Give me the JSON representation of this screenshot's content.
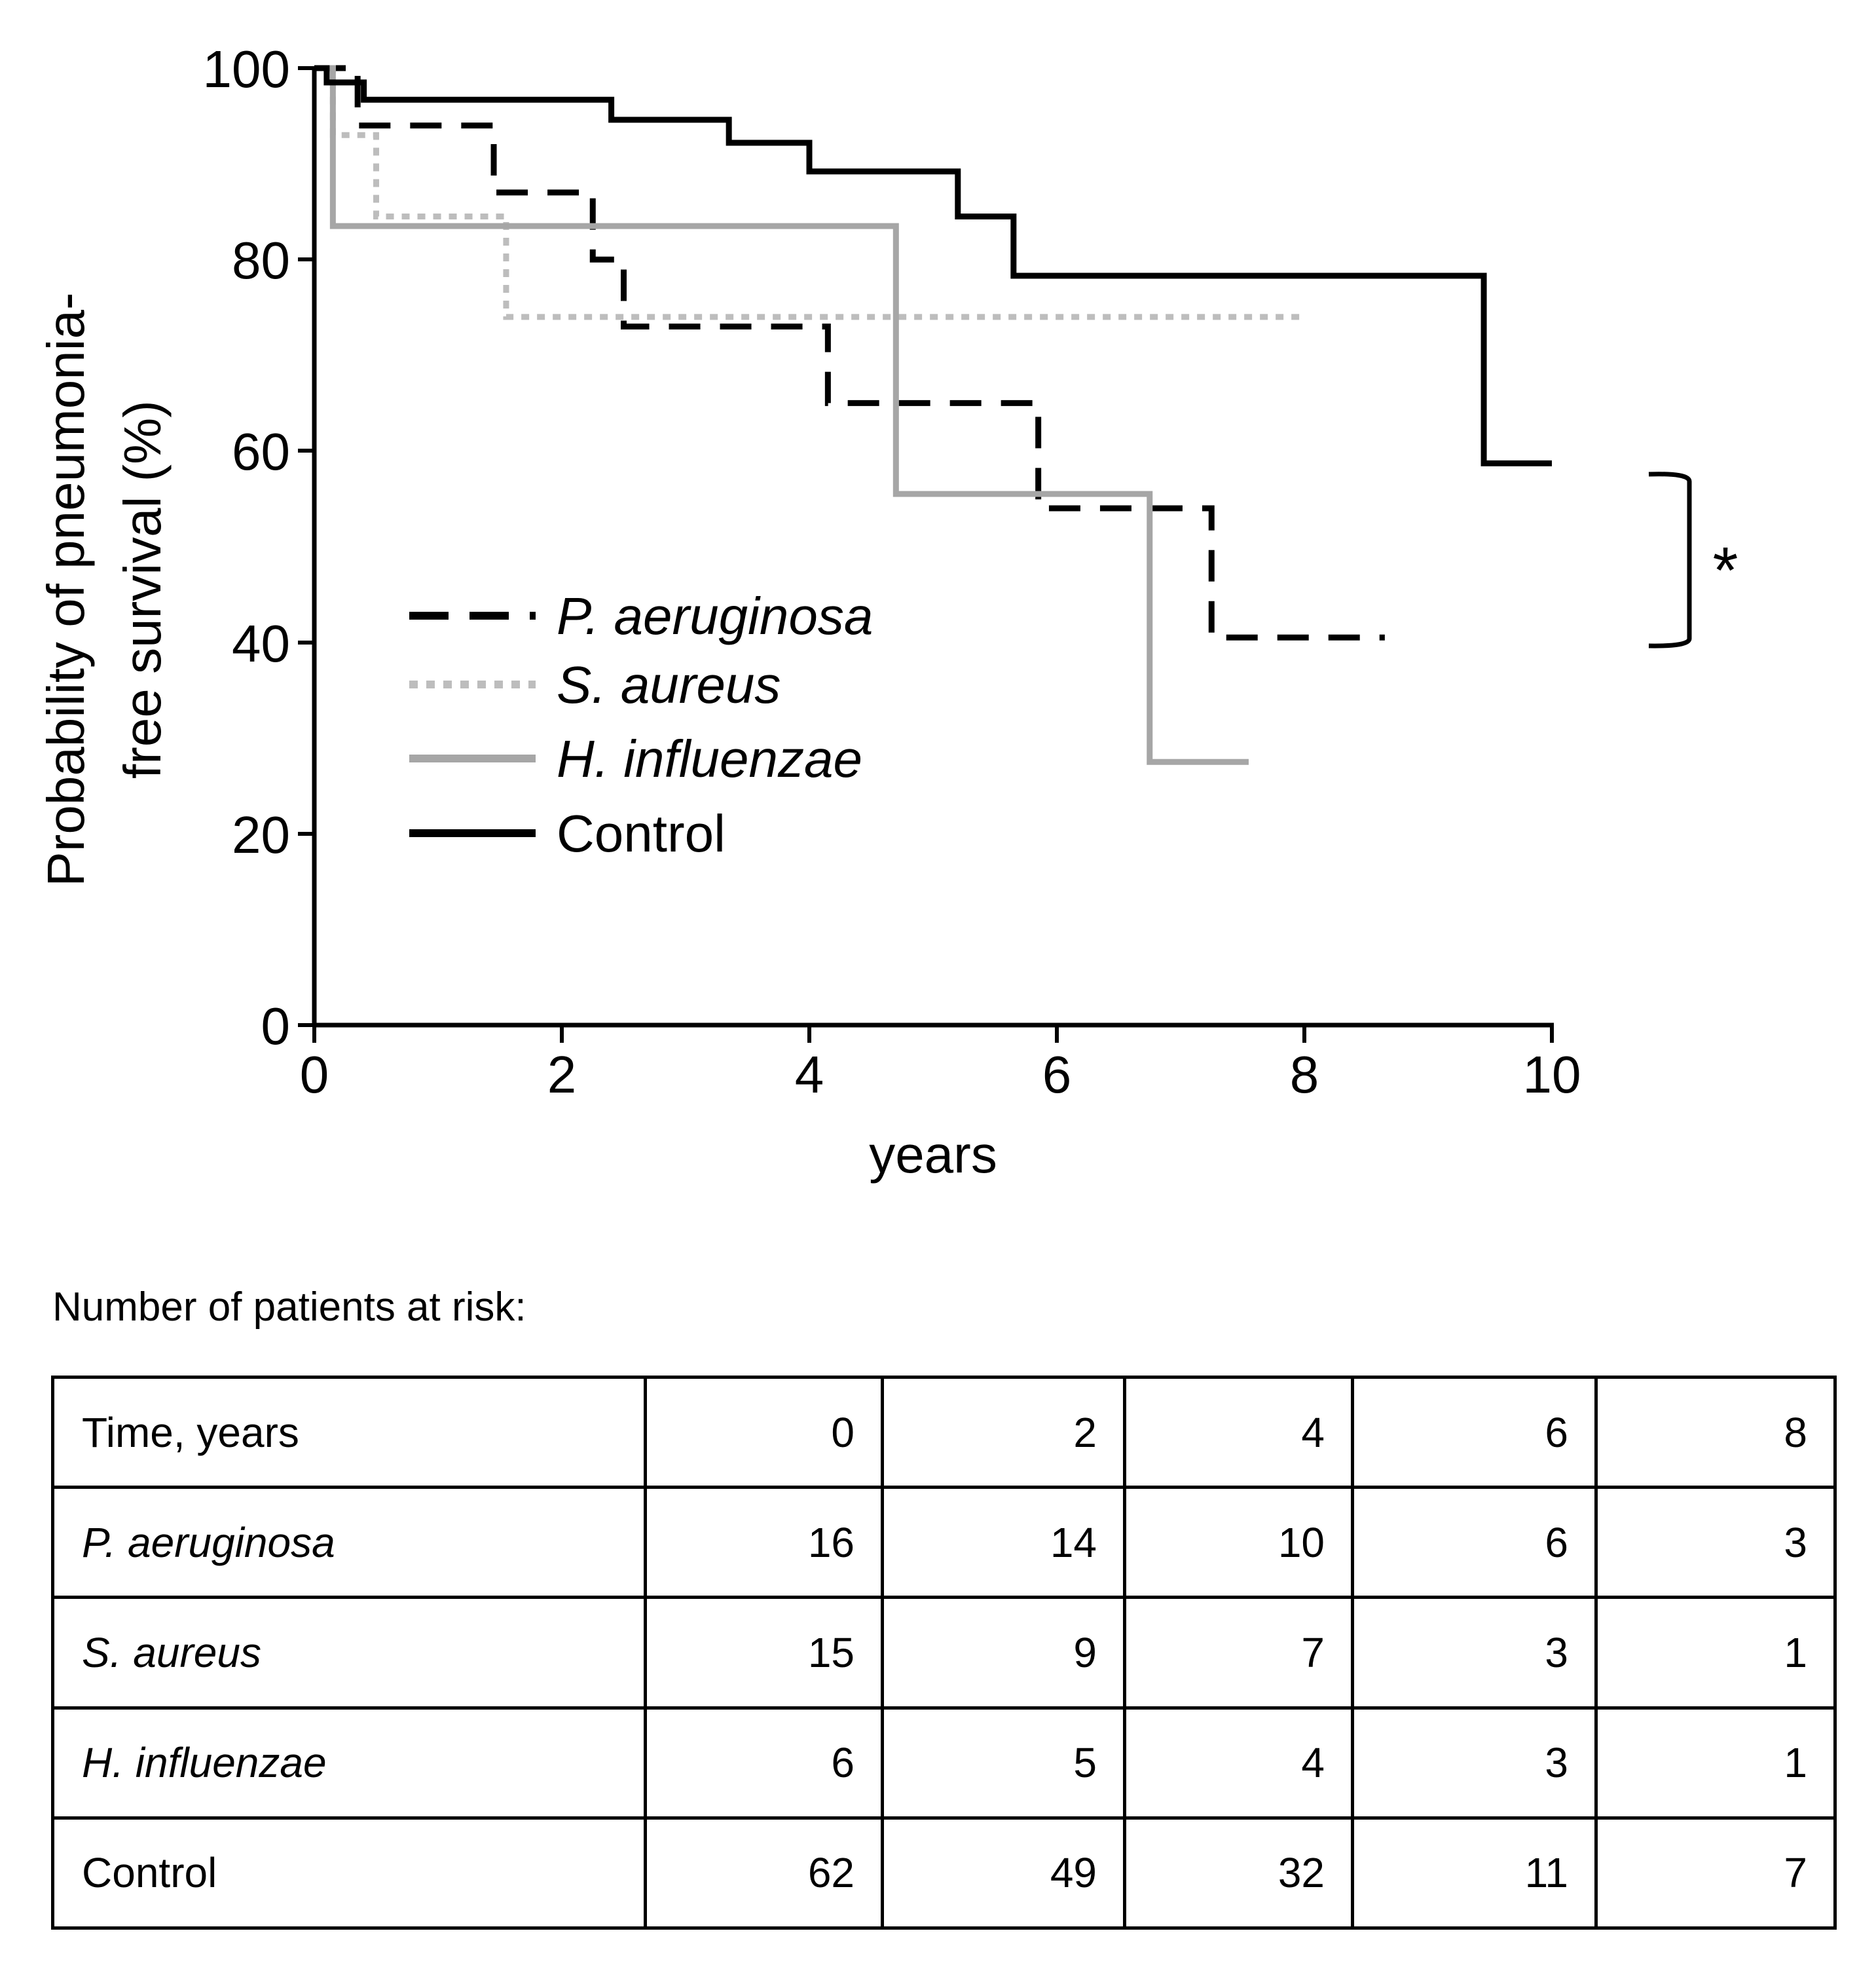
{
  "chart_data": {
    "type": "line",
    "subtype": "kaplan-meier step",
    "xlabel": "years",
    "ylabel_line1": "Probability of pneumonia-",
    "ylabel_line2": "free survival (%)",
    "xlim": [
      0,
      10
    ],
    "ylim": [
      0,
      100
    ],
    "xticks": [
      "0",
      "2",
      "4",
      "6",
      "8",
      "10"
    ],
    "yticks": [
      "0",
      "20",
      "40",
      "60",
      "80",
      "100"
    ],
    "legend_position": "center-left",
    "significance_marker": "*",
    "series": [
      {
        "name": "P. aeruginosa",
        "style": "dashed",
        "color": "#000000",
        "x": [
          0,
          0.35,
          1.45,
          2.25,
          2.5,
          4.15,
          5.85,
          7.25,
          8.65
        ],
        "y": [
          100,
          94,
          87,
          80,
          73,
          65,
          54,
          40.5,
          40.5
        ]
      },
      {
        "name": "S. aureus",
        "style": "dotted",
        "color": "#bdbdbd",
        "x": [
          0,
          0.15,
          0.5,
          1.55,
          8.0
        ],
        "y": [
          100,
          93,
          84.5,
          74,
          74
        ]
      },
      {
        "name": "H. influenzae",
        "style": "solid",
        "color": "#a6a6a6",
        "x": [
          0,
          0.15,
          4.7,
          6.75,
          7.55
        ],
        "y": [
          100,
          83.5,
          55.5,
          27.5,
          27.5
        ]
      },
      {
        "name": "Control",
        "style": "solid",
        "color": "#000000",
        "x": [
          0,
          0.1,
          0.4,
          2.4,
          3.35,
          4.0,
          5.2,
          5.65,
          9.45,
          10.0
        ],
        "y": [
          100,
          98.5,
          96.7,
          94.6,
          92.2,
          89.2,
          84.5,
          78.3,
          58.7,
          58.7
        ]
      }
    ]
  },
  "risk_table": {
    "heading": "Number of patients at risk:",
    "header_label": "Time, years",
    "times": [
      "0",
      "2",
      "4",
      "6",
      "8"
    ],
    "rows": [
      {
        "label": "P. aeruginosa",
        "values": [
          "16",
          "14",
          "10",
          "6",
          "3"
        ]
      },
      {
        "label": "S. aureus",
        "values": [
          "15",
          "9",
          "7",
          "3",
          "1"
        ]
      },
      {
        "label": "H. influenzae",
        "values": [
          "6",
          "5",
          "4",
          "3",
          "1"
        ]
      },
      {
        "label": "Control",
        "values": [
          "62",
          "49",
          "32",
          "11",
          "7"
        ]
      }
    ]
  }
}
